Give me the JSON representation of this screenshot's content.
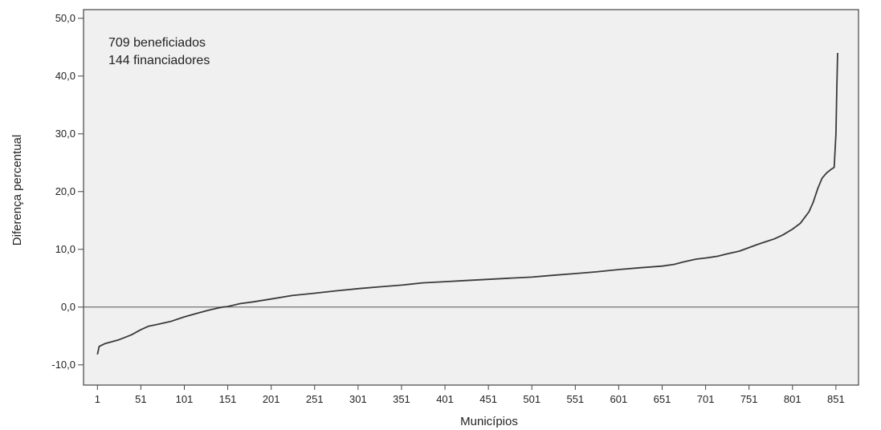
{
  "chart_data": {
    "type": "line",
    "xlabel": "Municípios",
    "ylabel": "Diferença percentual",
    "xlim": [
      -15,
      877
    ],
    "ylim": [
      -13.5,
      51.5
    ],
    "x_ticks": [
      1,
      51,
      101,
      151,
      201,
      251,
      301,
      351,
      401,
      451,
      501,
      551,
      601,
      651,
      701,
      751,
      801,
      851
    ],
    "x_tick_labels": [
      "1",
      "51",
      "101",
      "151",
      "201",
      "251",
      "301",
      "351",
      "401",
      "451",
      "501",
      "551",
      "601",
      "651",
      "701",
      "751",
      "801",
      "851"
    ],
    "y_ticks": [
      -10,
      0,
      10,
      20,
      30,
      40,
      50
    ],
    "y_tick_labels": [
      "-10,0",
      "0,0",
      "10,0",
      "20,0",
      "30,0",
      "40,0",
      "50,0"
    ],
    "reference_line_y": 0,
    "grid": false,
    "annotations": [
      "709 beneficiados",
      "144 financiadores"
    ],
    "colors": {
      "plot_background": "#f0f0f0",
      "line": "#3a3a3a",
      "frame": "#444444"
    },
    "series": [
      {
        "x": [
          1,
          3,
          10,
          25,
          40,
          51,
          60,
          70,
          85,
          101,
          115,
          130,
          145,
          151,
          165,
          180,
          201,
          225,
          251,
          275,
          301,
          325,
          351,
          375,
          401,
          425,
          451,
          475,
          501,
          525,
          551,
          575,
          601,
          625,
          651,
          665,
          675,
          690,
          701,
          715,
          725,
          740,
          751,
          760,
          770,
          780,
          790,
          801,
          810,
          815,
          820,
          825,
          830,
          835,
          840,
          845,
          849,
          851,
          852,
          853
        ],
        "y": [
          -8.2,
          -6.8,
          -6.3,
          -5.7,
          -4.8,
          -3.9,
          -3.3,
          -3.0,
          -2.5,
          -1.7,
          -1.1,
          -0.5,
          0.0,
          0.1,
          0.6,
          0.9,
          1.4,
          2.0,
          2.4,
          2.8,
          3.2,
          3.5,
          3.8,
          4.2,
          4.4,
          4.6,
          4.8,
          5.0,
          5.2,
          5.5,
          5.8,
          6.1,
          6.5,
          6.8,
          7.1,
          7.4,
          7.8,
          8.3,
          8.5,
          8.8,
          9.2,
          9.7,
          10.3,
          10.8,
          11.3,
          11.8,
          12.5,
          13.5,
          14.5,
          15.5,
          16.5,
          18.2,
          20.5,
          22.3,
          23.2,
          23.8,
          24.2,
          30.0,
          38.0,
          44.0
        ]
      }
    ]
  }
}
